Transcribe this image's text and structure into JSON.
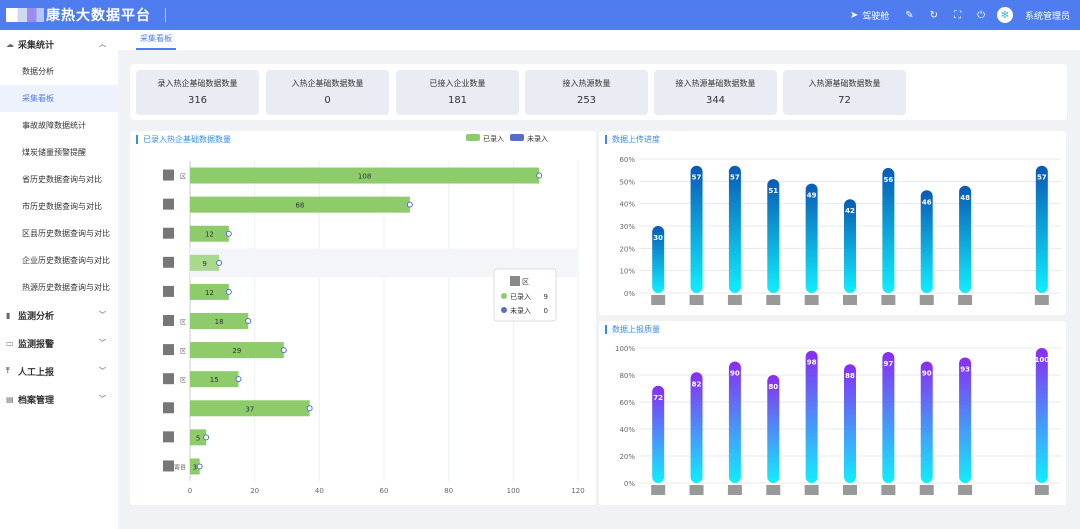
{
  "header": {
    "title": "康热大数据平台",
    "drive_label": "驾驶舱",
    "user_name": "系统管理员"
  },
  "sidebar": {
    "groups": [
      {
        "label": "采集统计",
        "icon": "cloud-icon",
        "expanded": true,
        "items": [
          {
            "label": "数据分析"
          },
          {
            "label": "采集看板",
            "active": true
          },
          {
            "label": "事故故障数据统计"
          },
          {
            "label": "煤炭储量预警提醒"
          },
          {
            "label": "省历史数据查询与对比"
          },
          {
            "label": "市历史数据查询与对比"
          },
          {
            "label": "区县历史数据查询与对比"
          },
          {
            "label": "企业历史数据查询与对比"
          },
          {
            "label": "热源历史数据查询与对比"
          }
        ]
      },
      {
        "label": "监测分析",
        "icon": "bar-chart-icon"
      },
      {
        "label": "监测报警",
        "icon": "monitor-icon"
      },
      {
        "label": "人工上报",
        "icon": "upload-icon"
      },
      {
        "label": "档案管理",
        "icon": "archive-icon"
      }
    ]
  },
  "tabs": [
    {
      "label": "采集看板"
    }
  ],
  "stats": [
    {
      "label": "录入热企基础数据数量",
      "value": "316"
    },
    {
      "label": "入热企基础数据数量",
      "value": "0"
    },
    {
      "label": "已接入企业数量",
      "value": "181"
    },
    {
      "label": "接入热源数量",
      "value": "253"
    },
    {
      "label": "接入热源基础数据数量",
      "value": "344"
    },
    {
      "label": "入热源基础数据数量",
      "value": "72"
    }
  ],
  "panels": {
    "left_title": "已录入热企基础数据数量",
    "right_top_title": "数据上传进度",
    "right_bottom_title": "数据上报质量"
  },
  "tooltip": {
    "title": "区",
    "rows": [
      {
        "label": "已录入",
        "value": "9"
      },
      {
        "label": "未录入",
        "value": "0"
      }
    ]
  },
  "chart_data": [
    {
      "type": "bar",
      "orientation": "horizontal",
      "categories": [
        "区",
        "",
        "",
        "",
        "",
        "区",
        "区",
        "区",
        "",
        "",
        "寄县"
      ],
      "series": [
        {
          "name": "已录入",
          "color": "#8dcb6b",
          "values": [
            108,
            68,
            12,
            9,
            12,
            18,
            29,
            15,
            37,
            5,
            3
          ]
        },
        {
          "name": "未录入",
          "color": "#5470c6",
          "values": [
            0,
            0,
            0,
            0,
            0,
            0,
            0,
            0,
            0,
            0,
            0
          ]
        }
      ],
      "xlim": [
        0,
        120
      ],
      "xticks": [
        0,
        20,
        40,
        60,
        80,
        100,
        120
      ],
      "legend": "top-right",
      "grid": true
    },
    {
      "type": "bar",
      "values": [
        30,
        57,
        57,
        51,
        49,
        42,
        56,
        46,
        48,
        57
      ],
      "ylim": [
        0,
        60
      ],
      "yticks": [
        "0%",
        "10%",
        "20%",
        "30%",
        "40%",
        "50%",
        "60%"
      ],
      "grid": true,
      "colors": [
        "#0a59b5",
        "#10eeff"
      ]
    },
    {
      "type": "bar",
      "values": [
        72,
        82,
        90,
        80,
        98,
        88,
        97,
        90,
        93,
        100
      ],
      "ylim": [
        0,
        100
      ],
      "yticks": [
        "0%",
        "20%",
        "40%",
        "60%",
        "80%",
        "100%"
      ],
      "grid": true,
      "colors": [
        "#8a2cf2",
        "#10eeff"
      ]
    }
  ]
}
